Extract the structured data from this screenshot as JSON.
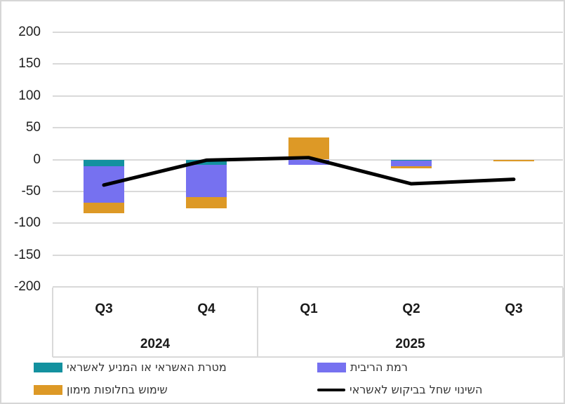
{
  "chart_data": {
    "type": "bar",
    "subtype": "stacked-bar-with-line-overlay",
    "title": "",
    "xlabel": "",
    "ylabel": "",
    "categories": [
      "Q3",
      "Q4",
      "Q1",
      "Q2",
      "Q3"
    ],
    "year_groups": [
      {
        "label": "2024",
        "count": 2
      },
      {
        "label": "2025",
        "count": 3
      }
    ],
    "bar_series": [
      {
        "name": "מטרת האשראי או המניע לאשראי",
        "color": "#13919F",
        "values": [
          -10,
          -8,
          0,
          -2,
          0
        ]
      },
      {
        "name": "רמת הריבית",
        "color": "#7671F0",
        "values": [
          -58,
          -51,
          -8,
          -9,
          0
        ]
      },
      {
        "name": "שימוש בחלופות מימון",
        "color": "#DD9926",
        "values": [
          -16,
          -17,
          35,
          -3,
          -3
        ]
      }
    ],
    "line_series": {
      "name": "השינוי שחל בביקוש לאשראי",
      "color": "#000000",
      "values": [
        -40,
        -1,
        3,
        -38,
        -31
      ]
    },
    "ylim": [
      -200,
      200
    ],
    "ytick_step": 50,
    "ytick_labels": [
      "200",
      "150",
      "100",
      "50",
      "0",
      "-50",
      "-100",
      "-150",
      "-200"
    ],
    "grid": true,
    "gridline_color": "#D9D9D9",
    "axis_text_color": "#1F1F1F",
    "legend_position": "bottom",
    "legend_columns": [
      [
        "bar:0",
        "bar:2"
      ],
      [
        "bar:1",
        "line"
      ]
    ]
  }
}
